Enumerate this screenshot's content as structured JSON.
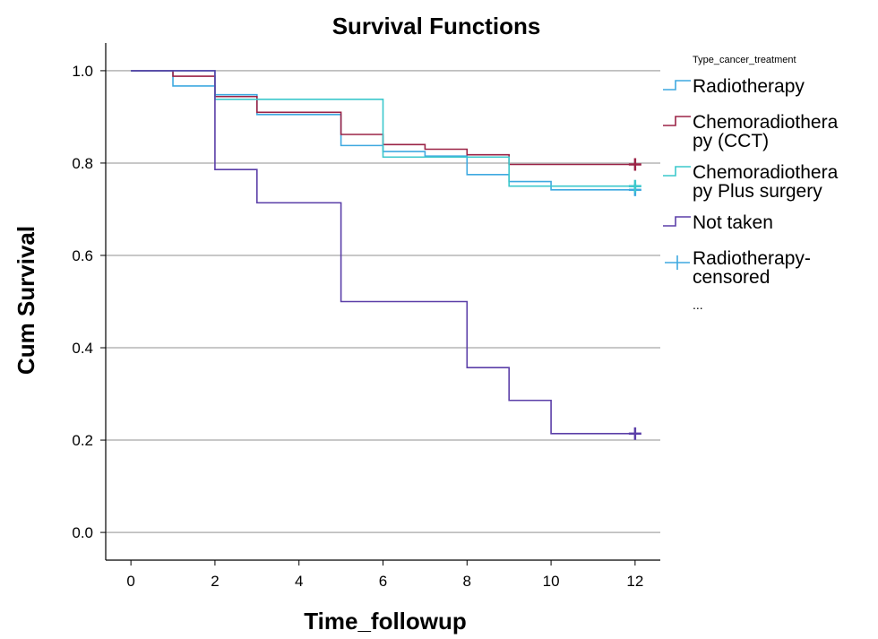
{
  "chart_data": {
    "type": "line",
    "title": "Survival Functions",
    "xlabel": "Time_followup",
    "ylabel": "Cum Survival",
    "xlim": [
      -0.6,
      12.6
    ],
    "ylim": [
      -0.06,
      1.06
    ],
    "xticks": [
      0,
      2,
      4,
      6,
      8,
      10,
      12
    ],
    "yticks": [
      0.0,
      0.2,
      0.4,
      0.6,
      0.8,
      1.0
    ],
    "ytick_labels": [
      "0.0",
      "0.2",
      "0.4",
      "0.6",
      "0.8",
      "1.0"
    ],
    "grid": "horizontal",
    "legend": {
      "title": "Type_cancer_treatment",
      "placement": "right",
      "entries": [
        {
          "lines": [
            "Radiotherapy"
          ],
          "color": "#3fa9e0",
          "marker": "step"
        },
        {
          "lines": [
            "Chemoradiothera",
            "py (CCT)"
          ],
          "color": "#9b2346",
          "marker": "step"
        },
        {
          "lines": [
            "Chemoradiothera",
            "py Plus surgery"
          ],
          "color": "#3cc8cc",
          "marker": "step"
        },
        {
          "lines": [
            "Not taken"
          ],
          "color": "#5b3fa8",
          "marker": "step"
        },
        {
          "lines": [
            "Radiotherapy-",
            "censored"
          ],
          "color": "#3fa9e0",
          "marker": "plus"
        }
      ],
      "more": "..."
    },
    "series": [
      {
        "name": "Radiotherapy",
        "color": "#3fa9e0",
        "step": true,
        "x": [
          0,
          1,
          2,
          3,
          5,
          6,
          7,
          8,
          9,
          10,
          12
        ],
        "y": [
          1.0,
          0.967,
          0.948,
          0.905,
          0.838,
          0.825,
          0.815,
          0.775,
          0.76,
          0.742,
          0.742
        ],
        "censored": [
          {
            "x": 12,
            "y": 0.742
          }
        ]
      },
      {
        "name": "Chemoradiotherapy (CCT)",
        "color": "#9b2346",
        "step": true,
        "x": [
          0,
          1,
          2,
          3,
          5,
          6,
          7,
          8,
          9,
          12
        ],
        "y": [
          1.0,
          0.988,
          0.944,
          0.91,
          0.862,
          0.84,
          0.83,
          0.818,
          0.797,
          0.797
        ],
        "censored": [
          {
            "x": 12,
            "y": 0.797
          }
        ]
      },
      {
        "name": "Chemoradiotherapy Plus surgery",
        "color": "#3cc8cc",
        "step": true,
        "x": [
          0,
          2,
          3,
          6,
          8,
          9,
          12
        ],
        "y": [
          1.0,
          0.938,
          0.938,
          0.813,
          0.813,
          0.75,
          0.75
        ],
        "censored": [
          {
            "x": 12,
            "y": 0.75
          }
        ]
      },
      {
        "name": "Not taken",
        "color": "#5b3fa8",
        "step": true,
        "x": [
          0,
          2,
          3,
          5,
          8,
          9,
          10,
          12
        ],
        "y": [
          1.0,
          0.786,
          0.714,
          0.5,
          0.357,
          0.286,
          0.214,
          0.214
        ],
        "censored": [
          {
            "x": 12,
            "y": 0.214
          }
        ]
      }
    ]
  }
}
